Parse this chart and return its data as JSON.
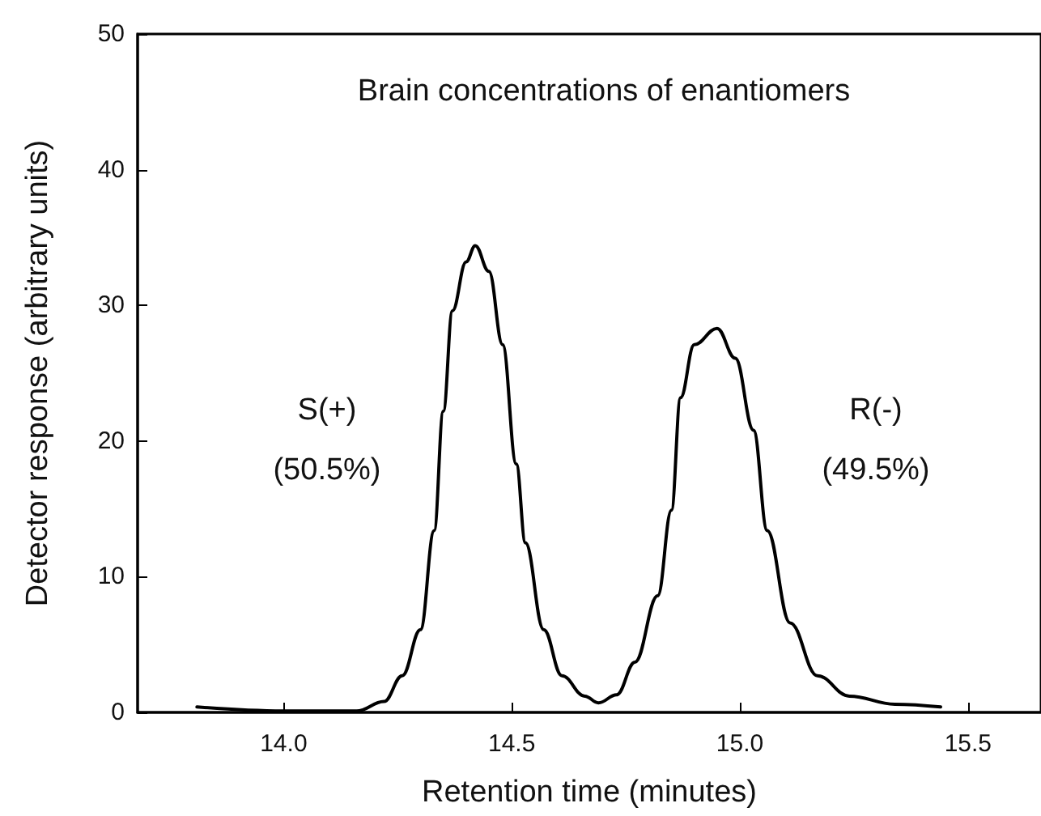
{
  "chart_data": {
    "type": "line",
    "title": "Brain concentrations of enantiomers",
    "xlabel": "Retention time (minutes)",
    "ylabel": "Detector response (arbitrary units)",
    "xlim": [
      13.68,
      15.66
    ],
    "ylim": [
      0,
      50
    ],
    "xticks": [
      {
        "value": 14,
        "label": "14.0"
      },
      14.5,
      {
        "value": 15,
        "label": "15.0"
      },
      15.5
    ],
    "yticks": [
      0,
      10,
      20,
      30,
      40,
      50
    ],
    "grid": false,
    "marker": "none",
    "line_style": "solid",
    "series": [
      {
        "color": "#000000",
        "x": [
          13.81,
          14.0,
          14.16,
          14.22,
          14.26,
          14.3,
          14.33,
          14.35,
          14.37,
          14.4,
          14.42,
          14.45,
          14.48,
          14.51,
          14.53,
          14.57,
          14.61,
          14.66,
          14.69,
          14.73,
          14.77,
          14.82,
          14.85,
          14.87,
          14.9,
          14.95,
          14.99,
          15.03,
          15.06,
          15.11,
          15.17,
          15.24,
          15.34,
          15.44
        ],
        "values": [
          0.4,
          0.1,
          0.1,
          0.8,
          2.7,
          6.1,
          13.4,
          22.2,
          29.6,
          33.2,
          34.4,
          32.5,
          27.1,
          18.3,
          12.5,
          6.1,
          2.7,
          1.2,
          0.7,
          1.3,
          3.7,
          8.6,
          14.9,
          23.2,
          27.1,
          28.3,
          26.1,
          20.8,
          13.4,
          6.6,
          2.7,
          1.2,
          0.6,
          0.4
        ]
      }
    ],
    "annotations": [
      "S(+)\n(50.5%)",
      "R(-)\n(49.5%)"
    ]
  }
}
